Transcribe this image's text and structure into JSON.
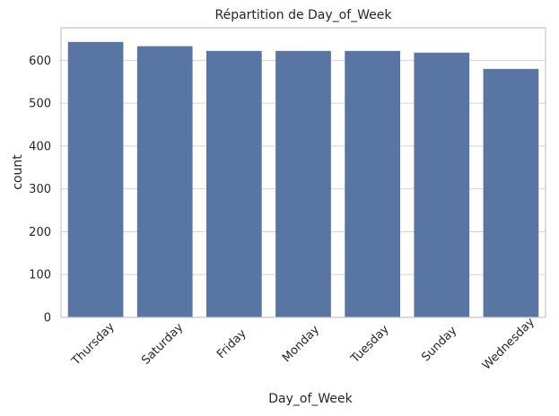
{
  "chart_data": {
    "type": "bar",
    "title": "Répartition de Day_of_Week",
    "xlabel": "Day_of_Week",
    "ylabel": "count",
    "categories": [
      "Thursday",
      "Saturday",
      "Friday",
      "Monday",
      "Tuesday",
      "Sunday",
      "Wednesday"
    ],
    "values": [
      643,
      633,
      622,
      622,
      622,
      618,
      580
    ],
    "ylim": [
      0,
      676
    ],
    "yticks": [
      0,
      100,
      200,
      300,
      400,
      500,
      600
    ],
    "grid": true,
    "colors": {
      "bar": "#5975a4",
      "grid": "#d4d4d4",
      "axis": "#c8c8c8",
      "background": "#ffffff"
    }
  }
}
